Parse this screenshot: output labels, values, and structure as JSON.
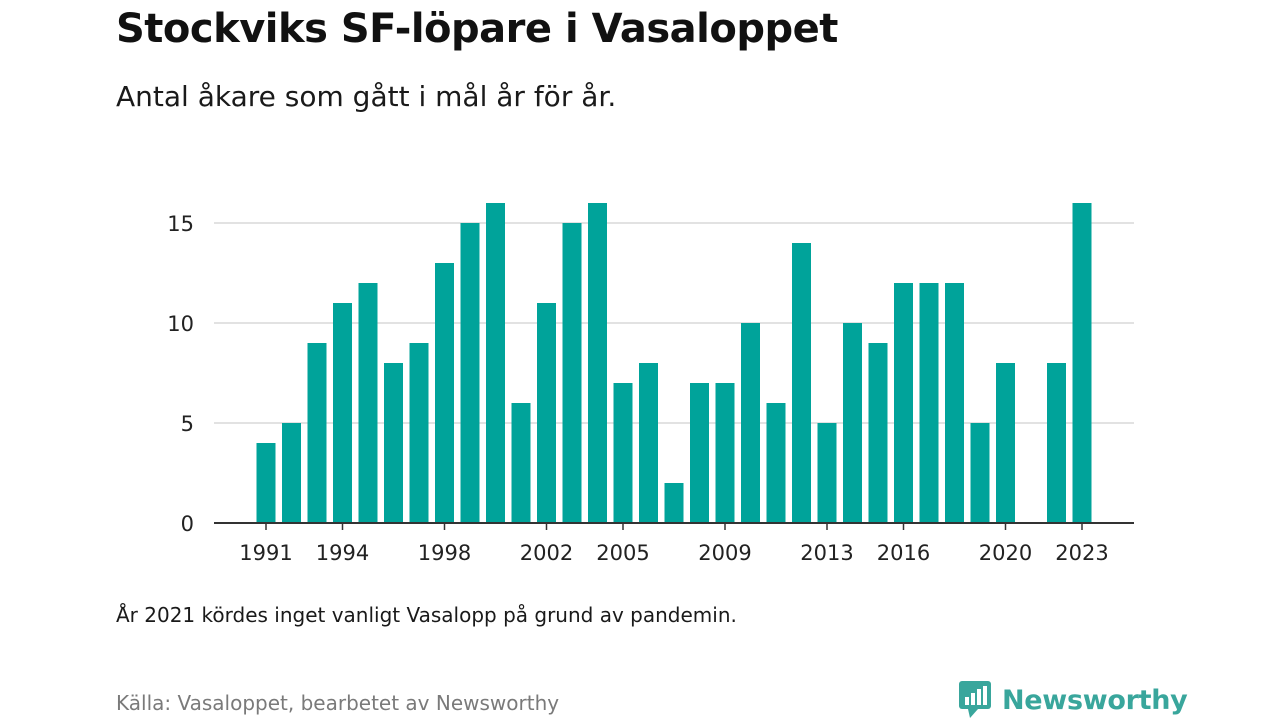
{
  "header": {
    "title": "Stockviks SF-löpare i Vasaloppet",
    "subtitle": "Antal åkare som gått i mål år för år."
  },
  "footer": {
    "note": "År 2021 kördes inget vanligt Vasalopp på grund av pandemin.",
    "source": "Källa: Vasaloppet, bearbetet av Newsworthy",
    "brand": "Newsworthy"
  },
  "colors": {
    "bar": "#00a39a",
    "grid": "#d9d9d9",
    "axis": "#333333",
    "brand": "#39a69c"
  },
  "chart_data": {
    "type": "bar",
    "x": [
      1991,
      1992,
      1993,
      1994,
      1995,
      1996,
      1997,
      1998,
      1999,
      2000,
      2001,
      2002,
      2003,
      2004,
      2005,
      2006,
      2007,
      2008,
      2009,
      2010,
      2011,
      2012,
      2013,
      2014,
      2015,
      2016,
      2017,
      2018,
      2019,
      2020,
      2021,
      2022,
      2023
    ],
    "values": [
      4,
      5,
      9,
      11,
      12,
      8,
      9,
      13,
      15,
      16,
      6,
      11,
      15,
      16,
      7,
      8,
      2,
      7,
      7,
      10,
      6,
      14,
      5,
      10,
      9,
      12,
      12,
      12,
      5,
      8,
      null,
      8,
      16
    ],
    "x_tick_labels": [
      "1991",
      "1994",
      "1998",
      "2002",
      "2005",
      "2009",
      "2013",
      "2016",
      "2020",
      "2023"
    ],
    "y_ticks": [
      0,
      5,
      10,
      15
    ],
    "ylim": [
      0,
      16
    ],
    "title": "Stockviks SF-löpare i Vasaloppet",
    "subtitle": "Antal åkare som gått i mål år för år.",
    "xlabel": "",
    "ylabel": "",
    "grid": true,
    "legend": "none"
  }
}
